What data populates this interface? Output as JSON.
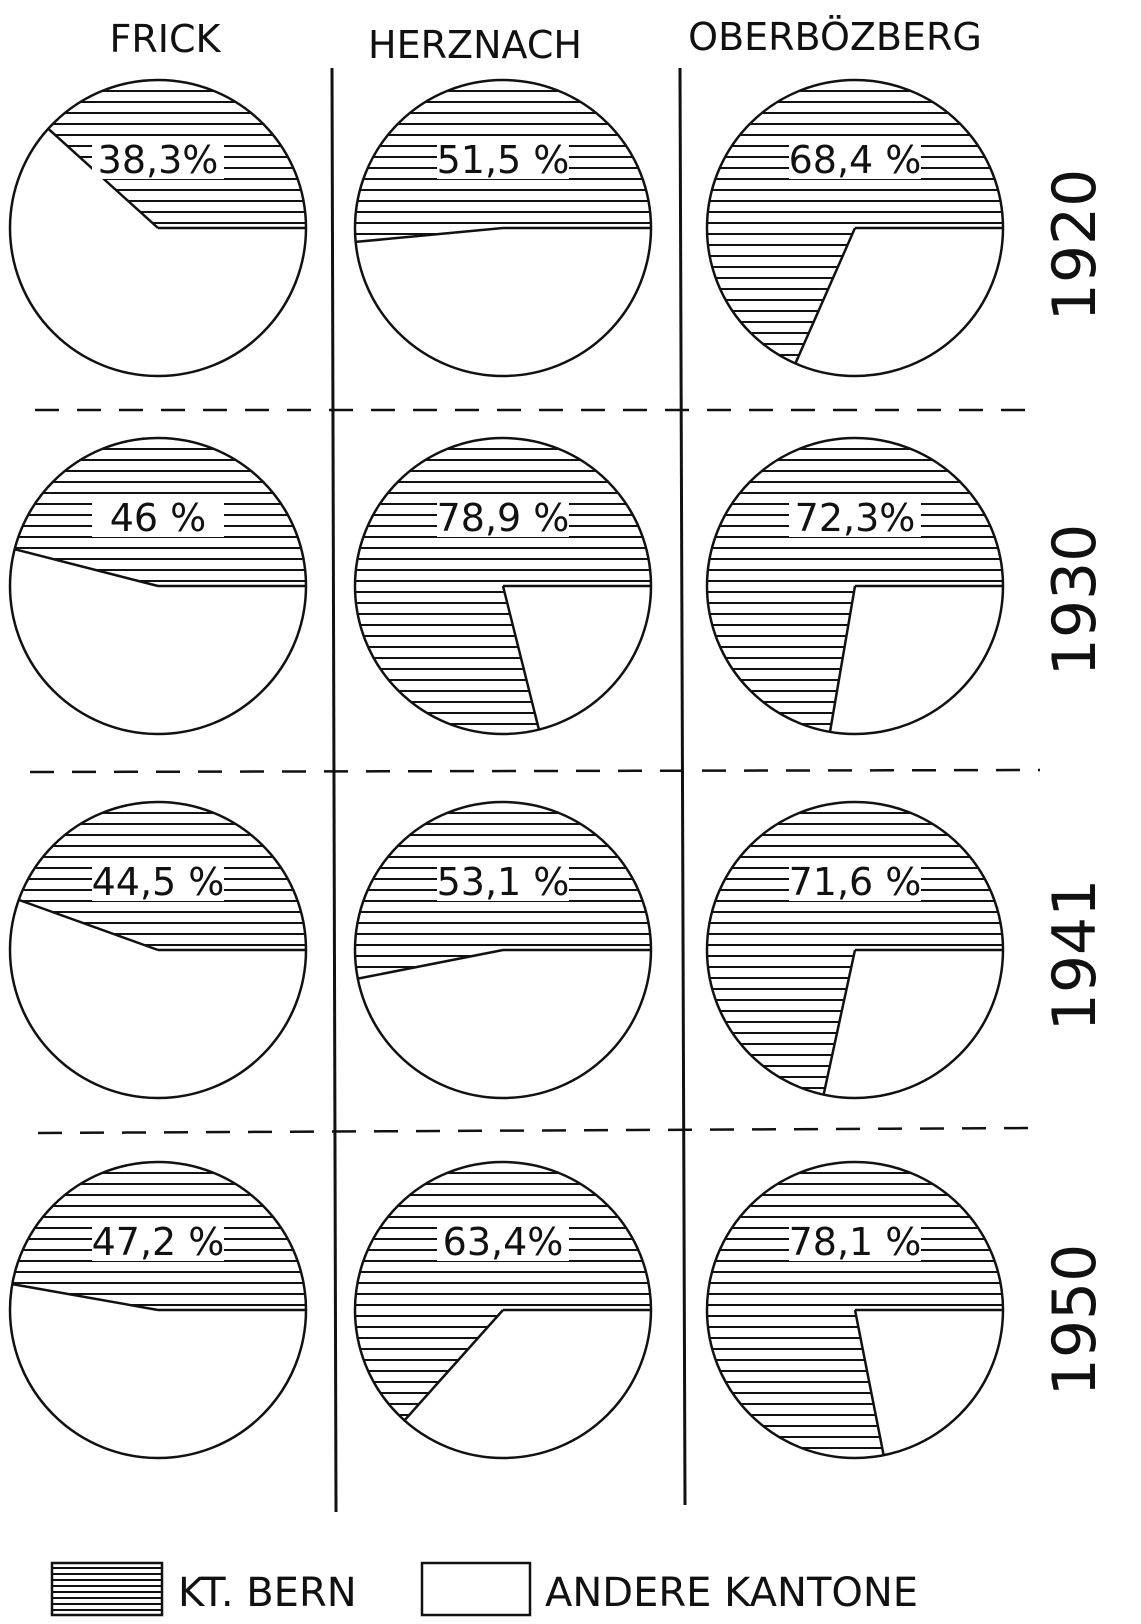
{
  "chart_data": {
    "type": "pie",
    "columns": [
      "FRICK",
      "HERZNACH",
      "OBERBÖZBERG"
    ],
    "rows": [
      "1920",
      "1930",
      "1941",
      "1950"
    ],
    "series": [
      {
        "name": "KT. BERN",
        "fill": "hatched"
      },
      {
        "name": "ANDERE KANTONE",
        "fill": "white"
      }
    ],
    "pies": [
      {
        "column": "FRICK",
        "year": "1920",
        "value": 38.3,
        "label": "38,3%"
      },
      {
        "column": "HERZNACH",
        "year": "1920",
        "value": 51.5,
        "label": "51,5 %"
      },
      {
        "column": "OBERBÖZBERG",
        "year": "1920",
        "value": 68.4,
        "label": "68,4 %"
      },
      {
        "column": "FRICK",
        "year": "1930",
        "value": 46,
        "label": "46 %"
      },
      {
        "column": "HERZNACH",
        "year": "1930",
        "value": 78.9,
        "label": "78,9 %"
      },
      {
        "column": "OBERBÖZBERG",
        "year": "1930",
        "value": 72.3,
        "label": "72,3%"
      },
      {
        "column": "FRICK",
        "year": "1941",
        "value": 44.5,
        "label": "44,5 %"
      },
      {
        "column": "HERZNACH",
        "year": "1941",
        "value": 53.1,
        "label": "53,1 %"
      },
      {
        "column": "OBERBÖZBERG",
        "year": "1941",
        "value": 71.6,
        "label": "71,6 %"
      },
      {
        "column": "FRICK",
        "year": "1950",
        "value": 47.2,
        "label": "47,2 %"
      },
      {
        "column": "HERZNACH",
        "year": "1950",
        "value": 63.4,
        "label": "63,4%"
      },
      {
        "column": "OBERBÖZBERG",
        "year": "1950",
        "value": 78.1,
        "label": "78,1 %"
      }
    ],
    "legend": {
      "placement": "bottom",
      "items": [
        "KT. BERN",
        "ANDERE KANTONE"
      ]
    },
    "colors": {
      "ink": "#111111",
      "background": "#ffffff"
    }
  }
}
